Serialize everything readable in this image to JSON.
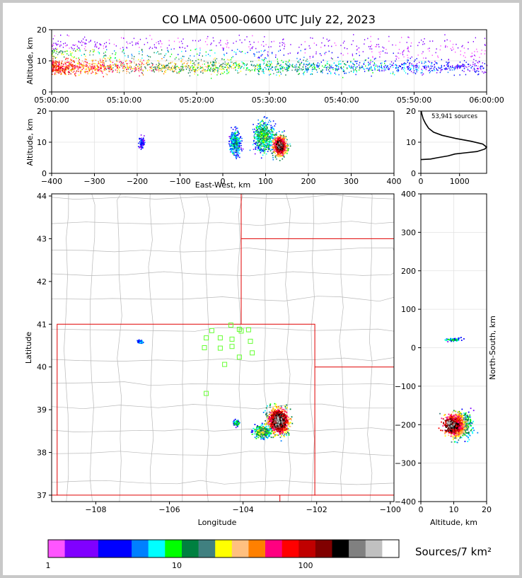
{
  "figure": {
    "title": "CO LMA 0500-0600 UTC July 22, 2023",
    "colorbar_label": "Sources/7 km²",
    "colorbar_ticks": [
      "1",
      "10",
      "100"
    ],
    "colorbar_colors": [
      "#ff55ff",
      "#8000ff",
      "#8000ff",
      "#0000ff",
      "#0000ff",
      "#0080ff",
      "#00ffff",
      "#00ff00",
      "#008040",
      "#408080",
      "#ffff00",
      "#ffc080",
      "#ff8000",
      "#ff0080",
      "#ff0000",
      "#c00000",
      "#800000",
      "#000000",
      "#808080",
      "#c0c0c0",
      "#ffffff"
    ]
  },
  "chart_data": [
    {
      "id": "time-height",
      "type": "heatmap",
      "ylabel": "Altitude, km",
      "xlim": [
        "05:00:00",
        "06:00:00"
      ],
      "ylim": [
        0,
        20
      ],
      "xticks": [
        "05:00:00",
        "05:10:00",
        "05:20:00",
        "05:30:00",
        "05:40:00",
        "05:50:00",
        "06:00:00"
      ],
      "yticks": [
        "0",
        "10",
        "20"
      ],
      "grid": true
    },
    {
      "id": "ew-height",
      "type": "heatmap",
      "xlabel": "East-West, km",
      "ylabel": "Altitude, km",
      "xlim": [
        -400,
        400
      ],
      "ylim": [
        0,
        20
      ],
      "xticks": [
        "−400",
        "−300",
        "−200",
        "−100",
        "0",
        "100",
        "200",
        "300",
        "400"
      ],
      "yticks": [
        "0",
        "10",
        "20"
      ],
      "grid": true
    },
    {
      "id": "altitude-histogram",
      "type": "line",
      "annotation": "53,941 sources",
      "xlim": [
        0,
        1700
      ],
      "ylim": [
        0,
        20
      ],
      "xticks": [
        "0",
        "1000"
      ],
      "yticks": [
        "0",
        "10",
        "20"
      ],
      "profile": [
        [
          0,
          4.4
        ],
        [
          250,
          4.6
        ],
        [
          420,
          5.0
        ],
        [
          700,
          5.6
        ],
        [
          880,
          6.2
        ],
        [
          1150,
          6.6
        ],
        [
          1450,
          7.0
        ],
        [
          1650,
          7.8
        ],
        [
          1700,
          8.4
        ],
        [
          1600,
          9.4
        ],
        [
          1300,
          10.3
        ],
        [
          900,
          11.2
        ],
        [
          550,
          12.2
        ],
        [
          330,
          13.2
        ],
        [
          200,
          14.5
        ],
        [
          120,
          16.0
        ],
        [
          60,
          17.5
        ],
        [
          25,
          19.0
        ],
        [
          10,
          20.0
        ]
      ],
      "grid": true
    },
    {
      "id": "plan-view",
      "type": "heatmap",
      "xlabel": "Longitude",
      "ylabel": "Latitude",
      "xlim": [
        -109.2,
        -99.9
      ],
      "ylim": [
        36.85,
        44.05
      ],
      "xticks": [
        "−108",
        "−106",
        "−104",
        "−102",
        "−100"
      ],
      "yticks": [
        "37",
        "38",
        "39",
        "40",
        "41",
        "42",
        "43",
        "44"
      ],
      "stations": [
        [
          -104.33,
          40.98
        ],
        [
          -104.85,
          40.85
        ],
        [
          -104.1,
          40.88
        ],
        [
          -103.85,
          40.87
        ],
        [
          -104.05,
          40.84
        ],
        [
          -105.0,
          40.68
        ],
        [
          -104.62,
          40.68
        ],
        [
          -104.3,
          40.65
        ],
        [
          -103.8,
          40.6
        ],
        [
          -105.05,
          40.45
        ],
        [
          -104.62,
          40.44
        ],
        [
          -104.3,
          40.48
        ],
        [
          -103.75,
          40.33
        ],
        [
          -104.1,
          40.23
        ],
        [
          -104.5,
          40.06
        ],
        [
          -105.0,
          39.38
        ]
      ],
      "grid": true
    },
    {
      "id": "ns-height",
      "type": "heatmap",
      "xlabel": "Altitude, km",
      "ylabel": "North-South, km",
      "xlim": [
        0,
        20
      ],
      "ylim": [
        -400,
        400
      ],
      "xticks": [
        "0",
        "10",
        "20"
      ],
      "yticks": [
        "−400",
        "−300",
        "−200",
        "−100",
        "0",
        "100",
        "200",
        "300",
        "400"
      ],
      "grid": true
    }
  ]
}
